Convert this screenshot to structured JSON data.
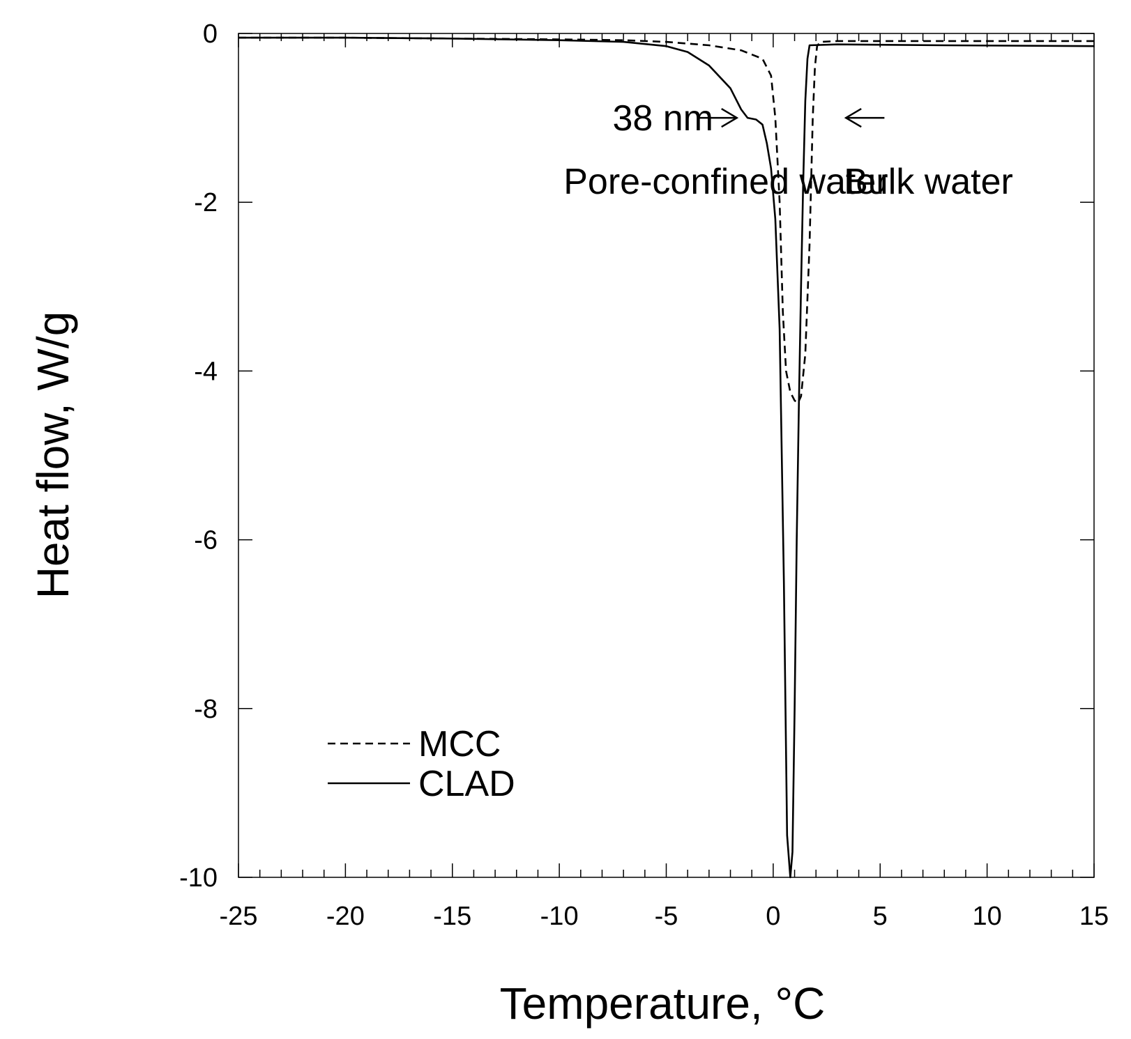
{
  "chart_data": {
    "type": "line",
    "xlabel": "Temperature, °C",
    "ylabel": "Heat flow, W/g",
    "xlim": [
      -25,
      15
    ],
    "ylim": [
      -10,
      0
    ],
    "x_ticks": [
      -25,
      -20,
      -15,
      -10,
      -5,
      0,
      5,
      10,
      15
    ],
    "y_ticks": [
      0,
      -2,
      -4,
      -6,
      -8,
      -10
    ],
    "x_tick_labels": [
      "-25",
      "-20",
      "-15",
      "-10",
      "-5",
      "0",
      "5",
      "10",
      "15"
    ],
    "y_tick_labels": [
      "0",
      "-2",
      "-4",
      "-6",
      "-8",
      "-10"
    ],
    "grid": false,
    "legend_position": "bottom-left",
    "series": [
      {
        "name": "MCC",
        "style": "dashed",
        "color": "#000000",
        "x": [
          -25,
          -20,
          -15,
          -10,
          -7,
          -5,
          -3,
          -1.5,
          -0.5,
          -0.1,
          0.1,
          0.3,
          0.45,
          0.6,
          0.8,
          1.0,
          1.15,
          1.3,
          1.5,
          1.7,
          1.85,
          1.95,
          2.05,
          2.2,
          3,
          8,
          15
        ],
        "y": [
          -0.05,
          -0.05,
          -0.06,
          -0.07,
          -0.08,
          -0.1,
          -0.14,
          -0.2,
          -0.3,
          -0.5,
          -1.0,
          -2.0,
          -3.3,
          -4.0,
          -4.25,
          -4.35,
          -4.38,
          -4.3,
          -3.8,
          -2.5,
          -1.0,
          -0.4,
          -0.15,
          -0.1,
          -0.09,
          -0.09,
          -0.09
        ]
      },
      {
        "name": "CLAD",
        "style": "solid",
        "color": "#000000",
        "x": [
          -25,
          -20,
          -15,
          -10,
          -7,
          -5,
          -4,
          -3,
          -2,
          -1.5,
          -1.2,
          -0.8,
          -0.5,
          -0.3,
          -0.1,
          0.1,
          0.3,
          0.5,
          0.65,
          0.8,
          0.9,
          1.0,
          1.1,
          1.2,
          1.3,
          1.4,
          1.5,
          1.6,
          1.7,
          3,
          8,
          15
        ],
        "y": [
          -0.05,
          -0.05,
          -0.06,
          -0.08,
          -0.1,
          -0.15,
          -0.22,
          -0.38,
          -0.65,
          -0.9,
          -1.0,
          -1.02,
          -1.08,
          -1.3,
          -1.6,
          -2.2,
          -3.5,
          -6.5,
          -9.5,
          -10,
          -9.7,
          -8.0,
          -6.0,
          -4.4,
          -3.0,
          -1.8,
          -0.8,
          -0.3,
          -0.14,
          -0.13,
          -0.14,
          -0.15
        ]
      }
    ],
    "annotations": [
      {
        "text": "38 nm",
        "x": -2.8,
        "y": -1.0
      },
      {
        "text": "Pore-confined water",
        "x": -9.8,
        "y": -1.75
      },
      {
        "text": "Bulk water",
        "x": 3.3,
        "y": -1.75
      }
    ],
    "arrows": [
      {
        "x_from": -3.5,
        "x_to": -1.7,
        "y": -1.0
      },
      {
        "x_from": 5.2,
        "x_to": 3.4,
        "y": -1.0
      }
    ]
  }
}
